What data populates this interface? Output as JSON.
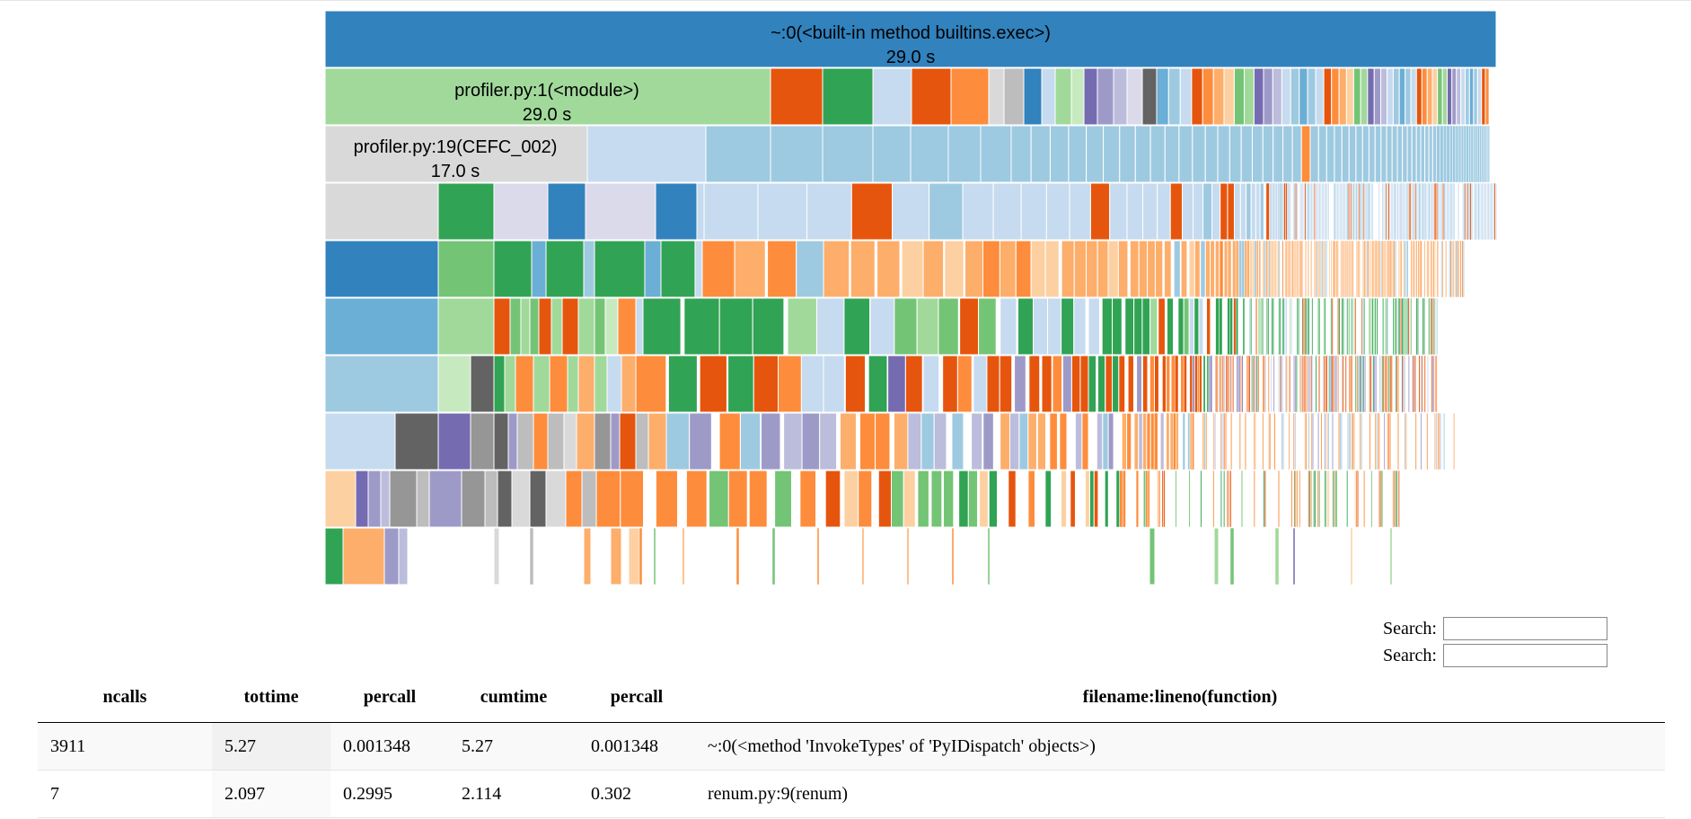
{
  "icicle": {
    "root": {
      "label": "~:0(<built-in method builtins.exec>)",
      "time": "29.0 s"
    },
    "module": {
      "label": "profiler.py:1(<module>)",
      "time": "29.0 s"
    },
    "cefc": {
      "label": "profiler.py:19(CEFC_002)",
      "time": "17.0 s"
    }
  },
  "search": {
    "label_1": "Search:",
    "label_2": "Search:",
    "value_1": "",
    "value_2": ""
  },
  "table": {
    "headers": [
      "ncalls",
      "tottime",
      "percall",
      "cumtime",
      "percall",
      "filename:lineno(function)"
    ],
    "rows": [
      [
        "3911",
        "5.27",
        "0.001348",
        "5.27",
        "0.001348",
        "~:0(<method 'InvokeTypes' of 'PyIDispatch' objects>)"
      ],
      [
        "7",
        "2.097",
        "0.2995",
        "2.114",
        "0.302",
        "renum.py:9(renum)"
      ]
    ]
  },
  "colors": {
    "palette": [
      "#3182bd",
      "#6baed6",
      "#9ecae1",
      "#c6dbef",
      "#e6550d",
      "#fd8d3c",
      "#fdae6b",
      "#fdd0a2",
      "#31a354",
      "#74c476",
      "#a1d99b",
      "#c7e9c0",
      "#756bb1",
      "#9e9ac8",
      "#bcbddc",
      "#dadaeb",
      "#636363",
      "#969696",
      "#bdbdbd",
      "#d9d9d9"
    ]
  }
}
